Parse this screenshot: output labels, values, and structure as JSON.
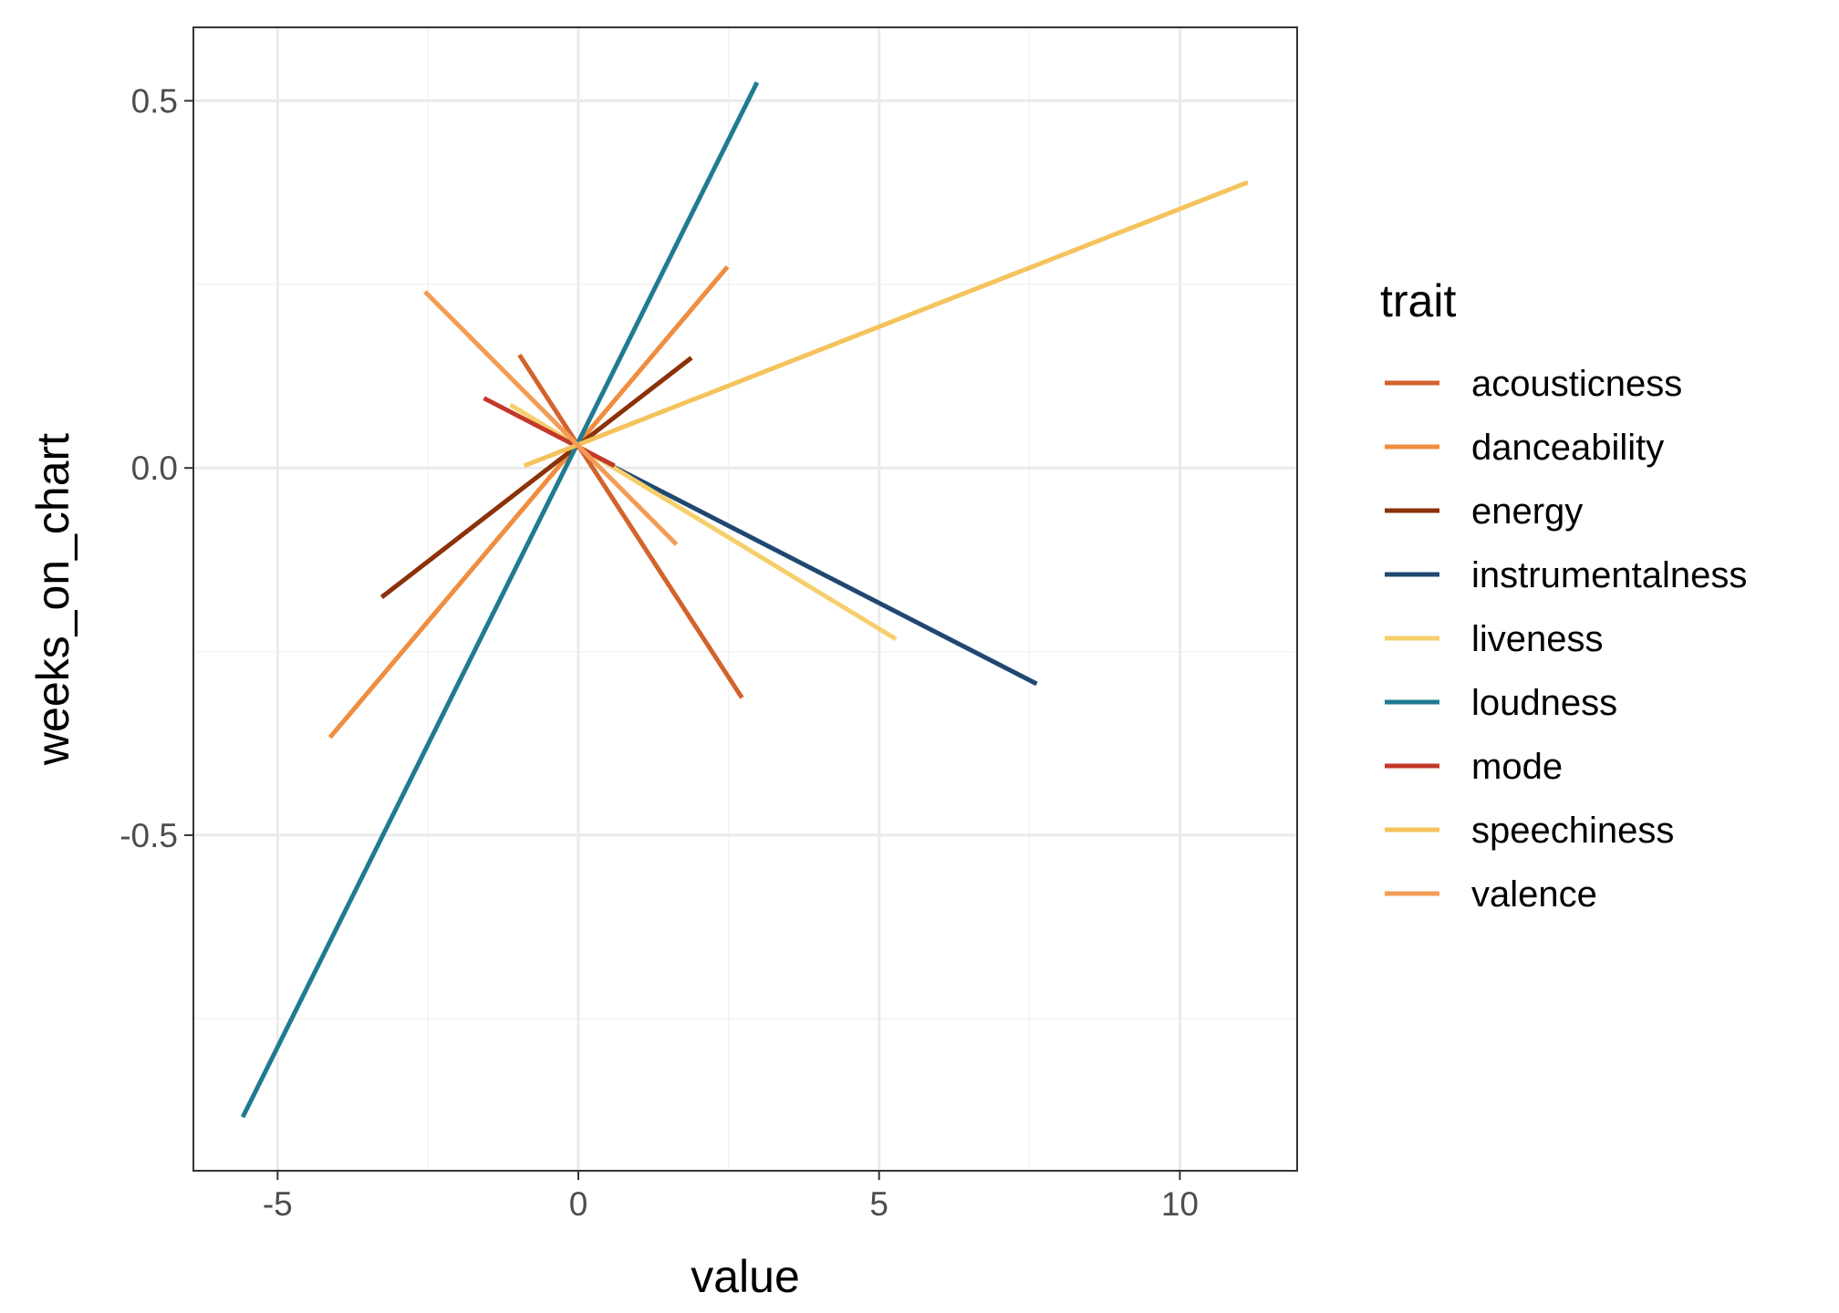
{
  "chart_data": {
    "type": "line",
    "title": "",
    "xlabel": "value",
    "ylabel": "weeks_on_chart",
    "xlim": [
      -6.4,
      11.95
    ],
    "ylim": [
      -0.957,
      0.6
    ],
    "x_ticks": [
      -5,
      0,
      5,
      10
    ],
    "x_tick_labels": [
      "-5",
      "0",
      "5",
      "10"
    ],
    "y_ticks": [
      0.5,
      0.0,
      -0.5
    ],
    "y_tick_labels": [
      "0.5",
      "0.0",
      "-0.5"
    ],
    "grid": true,
    "legend": {
      "title": "trait",
      "position": "right"
    },
    "series": [
      {
        "name": "acousticness",
        "color": "#d4622b",
        "x": [
          -0.98,
          2.72
        ],
        "y": [
          0.154,
          -0.313
        ]
      },
      {
        "name": "danceability",
        "color": "#f08d3e",
        "x": [
          -4.13,
          2.48
        ],
        "y": [
          -0.367,
          0.274
        ]
      },
      {
        "name": "energy",
        "color": "#8b3208",
        "x": [
          -3.27,
          1.88
        ],
        "y": [
          -0.176,
          0.15
        ]
      },
      {
        "name": "instrumentalness",
        "color": "#1e4870",
        "x": [
          0.55,
          7.62
        ],
        "y": [
          0.003,
          -0.294
        ]
      },
      {
        "name": "liveness",
        "color": "#f6cf6c",
        "x": [
          -1.13,
          5.28
        ],
        "y": [
          0.086,
          -0.233
        ]
      },
      {
        "name": "loudness",
        "color": "#207b90",
        "x": [
          -5.58,
          2.97
        ],
        "y": [
          -0.884,
          0.525
        ]
      },
      {
        "name": "mode",
        "color": "#c3382a",
        "x": [
          -1.57,
          0.6
        ],
        "y": [
          0.095,
          0.003
        ]
      },
      {
        "name": "speechiness",
        "color": "#f5c35c",
        "x": [
          -0.9,
          11.13
        ],
        "y": [
          0.003,
          0.389
        ]
      },
      {
        "name": "valence",
        "color": "#f19d56",
        "x": [
          -2.55,
          1.63
        ],
        "y": [
          0.24,
          -0.104
        ]
      }
    ]
  }
}
